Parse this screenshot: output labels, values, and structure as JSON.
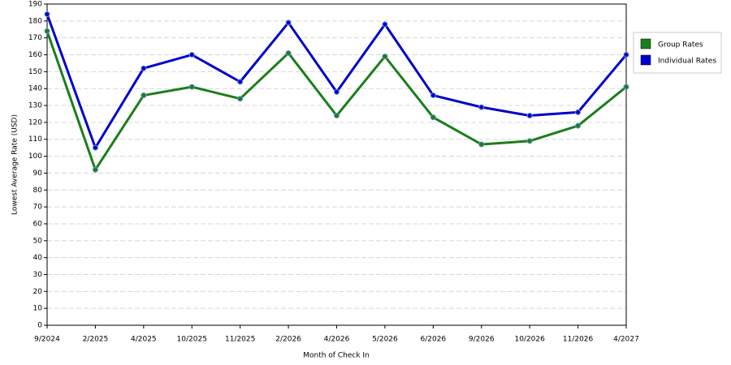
{
  "chart_data": {
    "type": "line",
    "x_label": "Month of Check In",
    "y_label": "Lowest Average Rate (USD)",
    "categories": [
      "9/2024",
      "2/2025",
      "4/2025",
      "10/2025",
      "11/2025",
      "2/2026",
      "4/2026",
      "5/2026",
      "6/2026",
      "9/2026",
      "10/2026",
      "11/2026",
      "4/2027"
    ],
    "series": [
      {
        "name": "Group Rates",
        "color": "#1a7f1a",
        "values": [
          174,
          92,
          136,
          141,
          134,
          161,
          124,
          159,
          123,
          107,
          109,
          118,
          141
        ]
      },
      {
        "name": "Individual Rates",
        "color": "#0000cc",
        "values": [
          184,
          105,
          152,
          160,
          144,
          179,
          138,
          178,
          136,
          129,
          124,
          126,
          160
        ]
      }
    ],
    "ylim": [
      0,
      190
    ],
    "yticks": [
      0,
      10,
      20,
      30,
      40,
      50,
      60,
      70,
      80,
      90,
      100,
      110,
      120,
      130,
      140,
      150,
      160,
      170,
      180,
      190
    ],
    "grid": true,
    "legend": "right"
  }
}
